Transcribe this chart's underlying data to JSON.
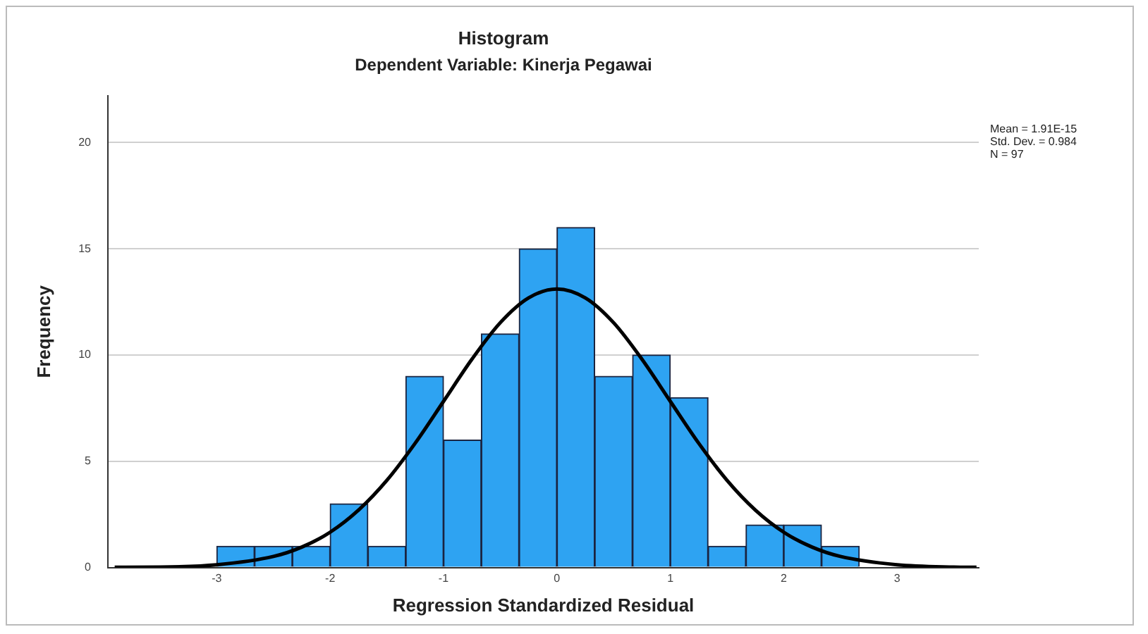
{
  "chart_data": {
    "type": "histogram",
    "title": "Histogram",
    "subtitle": "Dependent Variable: Kinerja Pegawai",
    "xlabel": "Regression Standardized Residual",
    "ylabel": "Frequency",
    "bins": [
      -3,
      -2.667,
      -2.333,
      -2,
      -1.667,
      -1.333,
      -1,
      -0.667,
      -0.333,
      0,
      0.333,
      0.667,
      1,
      1.333,
      1.667,
      2,
      2.333,
      2.667
    ],
    "values": [
      1,
      1,
      1,
      3,
      1,
      9,
      6,
      11,
      15,
      16,
      9,
      10,
      8,
      1,
      2,
      2,
      1
    ],
    "color": "#2ea3f2",
    "series": [
      {
        "type": "line",
        "color": "#000000",
        "marker": "none",
        "x": [
          -3.9,
          -3.5,
          -3,
          -2.5,
          -2.25,
          -2,
          -1.75,
          -1.5,
          -1.25,
          -1,
          -0.75,
          -0.5,
          -0.25,
          0,
          0.25,
          0.5,
          0.75,
          1,
          1.25,
          1.5,
          1.75,
          2,
          2.25,
          2.5,
          3,
          3.5,
          3.7
        ],
        "values": [
          0.01,
          0.02,
          0.13,
          0.52,
          0.96,
          1.66,
          2.7,
          4.1,
          5.85,
          7.82,
          9.8,
          11.52,
          12.69,
          13.11,
          12.69,
          11.52,
          9.8,
          7.82,
          5.85,
          4.1,
          2.7,
          1.66,
          0.96,
          0.52,
          0.13,
          0.02,
          0.01
        ]
      }
    ],
    "xlim": [
      -3.96,
      3.72
    ],
    "xticks": [
      -3,
      -2,
      -1,
      0,
      1,
      2,
      3
    ],
    "ylim": [
      0,
      22.2
    ],
    "yticks": [
      0,
      5,
      10,
      15,
      20
    ],
    "grid": "y",
    "legend": false,
    "annotations": [
      "Mean = 1.91E-15",
      "Std. Dev. = 0.984",
      "N = 97"
    ]
  }
}
